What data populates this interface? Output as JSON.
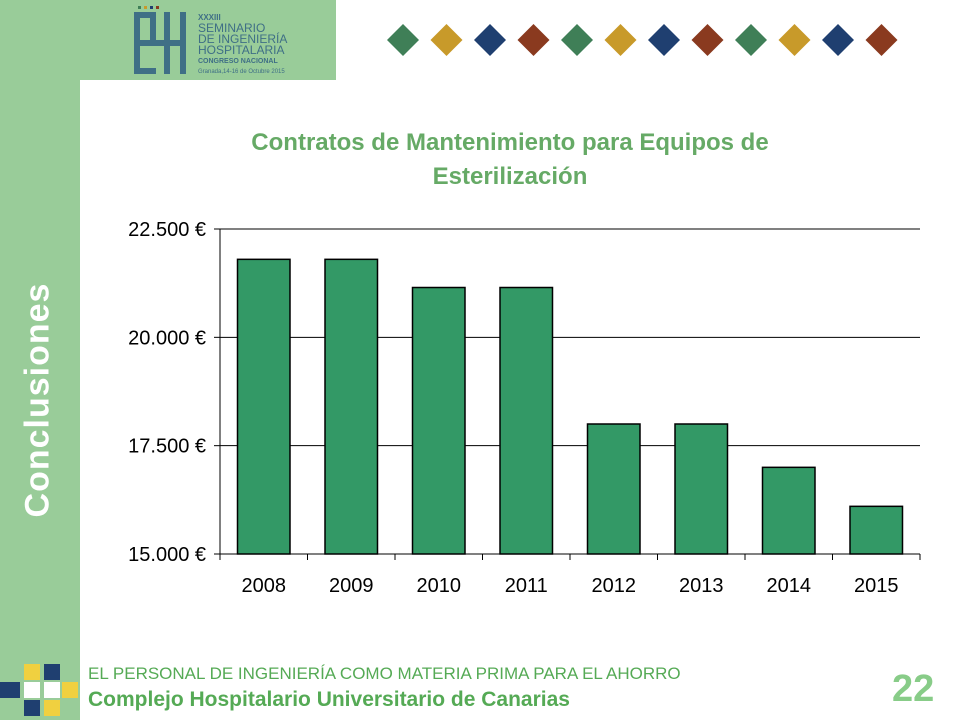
{
  "header": {
    "logo_lines": [
      "XXXIII",
      "SEMINARIO",
      "DE INGENIERÍA",
      "HOSPITALARIA",
      "CONGRESO NACIONAL",
      "Granada,14-16 de Octubre 2015"
    ],
    "diamond_colors": [
      "#3f7f57",
      "#c89a2a",
      "#1f3f70",
      "#8a3a1f",
      "#3f7f57",
      "#c89a2a",
      "#1f3f70",
      "#8a3a1f",
      "#3f7f57",
      "#c89a2a",
      "#1f3f70",
      "#8a3a1f"
    ]
  },
  "sidebar": {
    "vertical_title": "Conclusiones"
  },
  "chart_data": {
    "type": "bar",
    "title": "Contratos de Mantenimiento para Equipos de Esterilización",
    "categories": [
      "2008",
      "2009",
      "2010",
      "2011",
      "2012",
      "2013",
      "2014",
      "2015"
    ],
    "values": [
      21800,
      21800,
      21150,
      21150,
      18000,
      18000,
      17000,
      16100
    ],
    "ylim": [
      15000,
      22500
    ],
    "yticks": [
      15000,
      17500,
      20000,
      22500
    ],
    "ytick_labels": [
      "15.000 €",
      "17.500 €",
      "20.000 €",
      "22.500 €"
    ],
    "xlabel": "",
    "ylabel": "",
    "grid": true,
    "bar_color": "#339966"
  },
  "footer": {
    "line1": "EL PERSONAL DE INGENIERÍA COMO MATERIA PRIMA PARA EL AHORRO",
    "line2": "Complejo Hospitalario Universitario de Canarias",
    "page_number": "22"
  }
}
